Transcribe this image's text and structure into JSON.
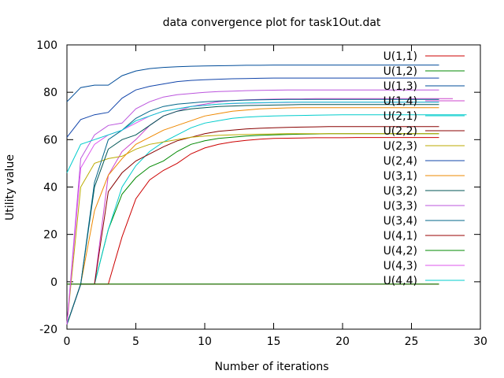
{
  "chart_data": {
    "type": "line",
    "title": "data convergence plot for task1Out.dat",
    "xlabel": "Number of iterations",
    "ylabel": "Utility value",
    "xlim": [
      0,
      30
    ],
    "ylim": [
      -20,
      100
    ],
    "xticks": [
      0,
      5,
      10,
      15,
      20,
      25,
      30
    ],
    "yticks": [
      -20,
      0,
      20,
      40,
      60,
      80,
      100
    ],
    "grid": false,
    "legend_position": "top-right",
    "series": [
      {
        "name": "U(1,1)",
        "color": "#cc0000",
        "x": [
          0,
          1,
          2,
          3,
          4,
          5,
          6,
          7,
          8,
          9,
          10,
          11,
          12,
          13,
          14,
          15,
          16,
          17,
          18,
          19,
          20,
          21,
          22,
          23,
          24,
          25,
          26,
          27
        ],
        "y": [
          -18,
          -1,
          -1,
          -1,
          19,
          35,
          43,
          47,
          50,
          54,
          56.5,
          58,
          59,
          59.7,
          60.2,
          60.5,
          60.6,
          60.7,
          60.8,
          60.8,
          60.8,
          60.9,
          60.9,
          60.9,
          60.9,
          60.9,
          60.9,
          60.9
        ]
      },
      {
        "name": "U(1,2)",
        "color": "#008800",
        "x": [
          0,
          1,
          2,
          3,
          4,
          5,
          6,
          7,
          8,
          9,
          10,
          11,
          12,
          13,
          14,
          15,
          16,
          17,
          18,
          19,
          20,
          21,
          22,
          23,
          24,
          25,
          26,
          27
        ],
        "y": [
          -18,
          -1,
          -1,
          22,
          37,
          44,
          48.5,
          51,
          55,
          58,
          59.5,
          60.5,
          61,
          61.5,
          61.8,
          62,
          62.2,
          62.3,
          62.4,
          62.5,
          62.5,
          62.5,
          62.5,
          62.5,
          62.5,
          62.5,
          62.5,
          62.5
        ]
      },
      {
        "name": "U(1,3)",
        "color": "#004c99",
        "x": [
          0,
          1,
          2,
          3,
          4,
          5,
          6,
          7,
          8,
          9,
          10,
          11,
          12,
          13,
          14,
          15,
          16,
          17,
          18,
          19,
          20,
          21,
          22,
          23,
          24,
          25,
          26,
          27
        ],
        "y": [
          76,
          82,
          83,
          83,
          87,
          89,
          90,
          90.5,
          90.8,
          91,
          91.1,
          91.2,
          91.3,
          91.4,
          91.4,
          91.5,
          91.5,
          91.5,
          91.5,
          91.5,
          91.5,
          91.5,
          91.5,
          91.5,
          91.5,
          91.5,
          91.5,
          91.5
        ]
      },
      {
        "name": "U(1,4)",
        "color": "#cc44cc",
        "x": [
          0,
          1,
          2,
          3,
          4,
          5,
          6,
          7,
          8,
          9,
          10,
          11,
          12,
          13,
          14,
          15,
          16,
          17,
          18,
          19,
          20,
          21,
          22,
          23,
          24,
          25,
          26,
          27,
          28
        ],
        "y": [
          -18,
          -1,
          -1,
          45,
          55,
          60,
          66,
          70,
          72,
          74,
          75,
          76,
          76.5,
          76.8,
          77,
          77.1,
          77.2,
          77.2,
          77.3,
          77.3,
          77.3,
          77.3,
          77.3,
          77.3,
          77.3,
          77.3,
          77.3,
          77.3,
          77.3
        ]
      },
      {
        "name": "U(2,1)",
        "color": "#00cccc",
        "x": [
          0,
          1,
          2,
          3,
          4,
          5,
          6,
          7,
          8,
          9,
          10,
          11,
          12,
          13,
          14,
          15,
          16,
          17,
          18,
          19,
          20,
          21,
          22,
          23,
          24,
          25,
          26,
          27,
          28,
          29
        ],
        "y": [
          -18,
          -1,
          -1,
          22,
          40,
          49,
          55,
          59,
          62,
          65,
          67,
          68,
          69,
          69.5,
          69.8,
          70,
          70.1,
          70.2,
          70.3,
          70.4,
          70.5,
          70.5,
          70.5,
          70.5,
          70.5,
          70.5,
          70.5,
          70.5,
          70.5,
          70.5
        ]
      },
      {
        "name": "U(2,2)",
        "color": "#880000",
        "x": [
          0,
          1,
          2,
          3,
          4,
          5,
          6,
          7,
          8,
          9,
          10,
          11,
          12,
          13,
          14,
          15,
          16,
          17,
          18,
          19,
          20,
          21,
          22,
          23,
          24,
          25,
          26,
          27
        ],
        "y": [
          -18,
          -1,
          -1,
          38,
          46,
          51,
          54,
          57,
          59.5,
          61,
          62.5,
          63.5,
          64,
          64.5,
          64.8,
          65,
          65.2,
          65.3,
          65.4,
          65.5,
          65.5,
          65.5,
          65.5,
          65.5,
          65.5,
          65.5,
          65.5,
          65.5
        ]
      },
      {
        "name": "U(2,3)",
        "color": "#bbaa00",
        "x": [
          0,
          1,
          2,
          3,
          4,
          5,
          6,
          7,
          8,
          9,
          10,
          11,
          12,
          13,
          14,
          15,
          16,
          17,
          18,
          19,
          20,
          21,
          22,
          23,
          24,
          25,
          26,
          27
        ],
        "y": [
          -18,
          40,
          50,
          52,
          53,
          56,
          58,
          59,
          60,
          61,
          61.5,
          61.8,
          62,
          62.2,
          62.3,
          62.4,
          62.5,
          62.5,
          62.5,
          62.5,
          62.5,
          62.5,
          62.5,
          62.5,
          62.5,
          62.5,
          62.5,
          62.5
        ]
      },
      {
        "name": "U(2,4)",
        "color": "#1144aa",
        "x": [
          0,
          1,
          2,
          3,
          4,
          5,
          6,
          7,
          8,
          9,
          10,
          11,
          12,
          13,
          14,
          15,
          16,
          17,
          18,
          19,
          20,
          21,
          22,
          23,
          24,
          25,
          26,
          27
        ],
        "y": [
          61,
          68.5,
          70.5,
          71.5,
          77.5,
          81,
          82.5,
          83.5,
          84.5,
          85,
          85.3,
          85.5,
          85.7,
          85.8,
          85.9,
          86,
          86,
          86,
          86,
          86,
          86,
          86,
          86,
          86,
          86,
          86,
          86,
          86
        ]
      },
      {
        "name": "U(3,1)",
        "color": "#ee8800",
        "x": [
          0,
          1,
          2,
          3,
          4,
          5,
          6,
          7,
          8,
          9,
          10,
          11,
          12,
          13,
          14,
          15,
          16,
          17,
          18,
          19,
          20,
          21,
          22,
          23,
          24,
          25,
          26,
          27
        ],
        "y": [
          -18,
          -1,
          30,
          45,
          52,
          58,
          61,
          64,
          66,
          68,
          70,
          71,
          72,
          72.5,
          73,
          73.2,
          73.4,
          73.5,
          73.5,
          73.5,
          73.5,
          73.5,
          73.5,
          73.5,
          73.5,
          73.5,
          73.5,
          73.5
        ]
      },
      {
        "name": "U(3,2)",
        "color": "#005555",
        "x": [
          0,
          1,
          2,
          3,
          4,
          5,
          6,
          7,
          8,
          9,
          10,
          11,
          12,
          13,
          14,
          15,
          16,
          17,
          18,
          19,
          20,
          21,
          22,
          23,
          24,
          25,
          26,
          27
        ],
        "y": [
          -18,
          -1,
          40,
          56,
          60,
          62,
          66,
          70,
          72,
          73,
          73.5,
          74,
          74.2,
          74.4,
          74.5,
          74.6,
          74.7,
          74.8,
          74.8,
          74.8,
          74.8,
          74.8,
          74.8,
          74.8,
          74.8,
          74.8,
          74.8,
          74.8
        ]
      },
      {
        "name": "U(3,3)",
        "color": "#bb55dd",
        "x": [
          0,
          1,
          2,
          3,
          4,
          5,
          6,
          7,
          8,
          9,
          10,
          11,
          12,
          13,
          14,
          15,
          16,
          17,
          18,
          19,
          20,
          21,
          22,
          23,
          24,
          25,
          26,
          27
        ],
        "y": [
          -18,
          52,
          62,
          66,
          67,
          73,
          76,
          78,
          79,
          79.5,
          80,
          80.3,
          80.5,
          80.7,
          80.8,
          80.9,
          81,
          81,
          81,
          81,
          81,
          81,
          81,
          81,
          81,
          81,
          81,
          81
        ]
      },
      {
        "name": "U(3,4)",
        "color": "#006688",
        "x": [
          0,
          1,
          2,
          3,
          4,
          5,
          6,
          7,
          8,
          9,
          10,
          11,
          12,
          13,
          14,
          15,
          16,
          17,
          18,
          19,
          20,
          21,
          22,
          23,
          24,
          25,
          26,
          27
        ],
        "y": [
          -18,
          -1,
          42,
          60,
          64,
          69,
          72,
          74,
          75,
          75.5,
          76,
          76.3,
          76.5,
          76.7,
          76.8,
          76.9,
          77,
          77,
          77,
          77,
          77,
          77,
          77,
          77,
          77,
          77,
          77,
          77
        ]
      },
      {
        "name": "U(4,1)",
        "color": "#990000",
        "x": [
          0,
          27
        ],
        "y": [
          -1,
          -1
        ]
      },
      {
        "name": "U(4,2)",
        "color": "#008800",
        "x": [
          0,
          27
        ],
        "y": [
          -1,
          -1
        ]
      },
      {
        "name": "U(4,3)",
        "color": "#dd55ee",
        "x": [
          0,
          1,
          2,
          3,
          4,
          5,
          6,
          7,
          8,
          9,
          10,
          11,
          12,
          13,
          14,
          15,
          16,
          17,
          18,
          19,
          20,
          21,
          22,
          23,
          24,
          25,
          26,
          27
        ],
        "y": [
          -18,
          48,
          58,
          62,
          64,
          67,
          70,
          72,
          73,
          74,
          74.5,
          75,
          75.2,
          75.4,
          75.5,
          75.6,
          75.7,
          75.8,
          75.8,
          75.8,
          75.8,
          75.8,
          75.8,
          75.8,
          75.8,
          75.8,
          75.8,
          75.8
        ]
      },
      {
        "name": "U(4,4)",
        "color": "#00cccc",
        "x": [
          0,
          1,
          2,
          3,
          4,
          5,
          6,
          7,
          8,
          9,
          10,
          11,
          12,
          13,
          14,
          15,
          16,
          17,
          18,
          19,
          20,
          21,
          22,
          23,
          24,
          25,
          26,
          27
        ],
        "y": [
          46,
          58,
          60,
          62,
          64,
          68,
          70,
          72,
          73,
          74,
          74.5,
          75,
          75.3,
          75.5,
          75.6,
          75.7,
          75.8,
          75.8,
          75.8,
          75.8,
          75.8,
          75.8,
          75.8,
          75.8,
          75.8,
          75.8,
          75.8,
          75.8
        ]
      }
    ]
  }
}
